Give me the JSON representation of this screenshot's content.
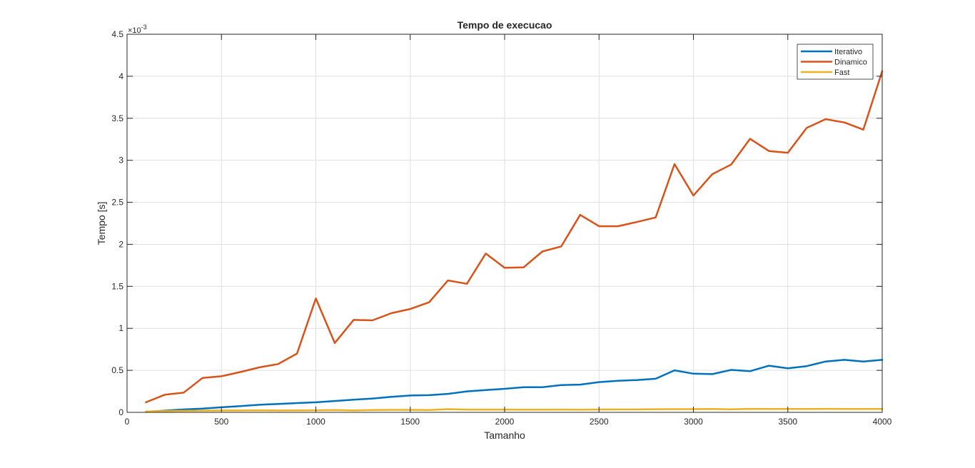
{
  "chart_data": {
    "type": "line",
    "title": "Tempo de execucao",
    "xlabel": "Tamanho",
    "ylabel": "Tempo [s]",
    "y_exponent_label": "×10",
    "y_exponent_power": "-3",
    "xlim": [
      0,
      4000
    ],
    "ylim": [
      0,
      4.5
    ],
    "xticks": [
      0,
      500,
      1000,
      1500,
      2000,
      2500,
      3000,
      3500,
      4000
    ],
    "yticks": [
      0,
      0.5,
      1,
      1.5,
      2,
      2.5,
      3,
      3.5,
      4,
      4.5
    ],
    "xtick_labels": [
      "0",
      "500",
      "1000",
      "1500",
      "2000",
      "2500",
      "3000",
      "3500",
      "4000"
    ],
    "ytick_labels": [
      "0",
      "0.5",
      "1",
      "1.5",
      "2",
      "2.5",
      "3",
      "3.5",
      "4",
      "4.5"
    ],
    "grid": true,
    "legend_position": "top-right",
    "x": [
      100,
      200,
      300,
      400,
      500,
      600,
      700,
      800,
      900,
      1000,
      1100,
      1200,
      1300,
      1400,
      1500,
      1600,
      1700,
      1800,
      1900,
      2000,
      2100,
      2200,
      2300,
      2400,
      2500,
      2600,
      2700,
      2800,
      2900,
      3000,
      3100,
      3200,
      3300,
      3400,
      3500,
      3600,
      3700,
      3800,
      3900,
      4000
    ],
    "series": [
      {
        "name": "Iterativo",
        "color": "#0072bd",
        "values": [
          0.005,
          0.02,
          0.035,
          0.045,
          0.06,
          0.075,
          0.09,
          0.1,
          0.11,
          0.12,
          0.135,
          0.15,
          0.165,
          0.185,
          0.2,
          0.205,
          0.22,
          0.25,
          0.265,
          0.28,
          0.3,
          0.3,
          0.325,
          0.33,
          0.36,
          0.375,
          0.385,
          0.4,
          0.5,
          0.46,
          0.455,
          0.505,
          0.49,
          0.555,
          0.525,
          0.55,
          0.605,
          0.625,
          0.605,
          0.625
        ]
      },
      {
        "name": "Dinamico",
        "color": "#d95319",
        "values": [
          0.12,
          0.21,
          0.235,
          0.41,
          0.43,
          0.48,
          0.535,
          0.575,
          0.7,
          1.355,
          0.825,
          1.1,
          1.095,
          1.18,
          1.23,
          1.31,
          1.57,
          1.53,
          1.89,
          1.72,
          1.725,
          1.915,
          1.975,
          2.35,
          2.215,
          2.215,
          2.265,
          2.32,
          2.955,
          2.58,
          2.835,
          2.95,
          3.255,
          3.11,
          3.09,
          3.385,
          3.49,
          3.45,
          3.365,
          4.06
        ]
      },
      {
        "name": "Fast",
        "color": "#edb120",
        "values": [
          0.01,
          0.015,
          0.018,
          0.02,
          0.022,
          0.022,
          0.025,
          0.022,
          0.024,
          0.025,
          0.028,
          0.023,
          0.028,
          0.03,
          0.03,
          0.027,
          0.038,
          0.033,
          0.033,
          0.033,
          0.032,
          0.032,
          0.033,
          0.032,
          0.034,
          0.035,
          0.035,
          0.037,
          0.038,
          0.038,
          0.04,
          0.036,
          0.042,
          0.04,
          0.04,
          0.04,
          0.042,
          0.04,
          0.04,
          0.04
        ]
      }
    ]
  }
}
